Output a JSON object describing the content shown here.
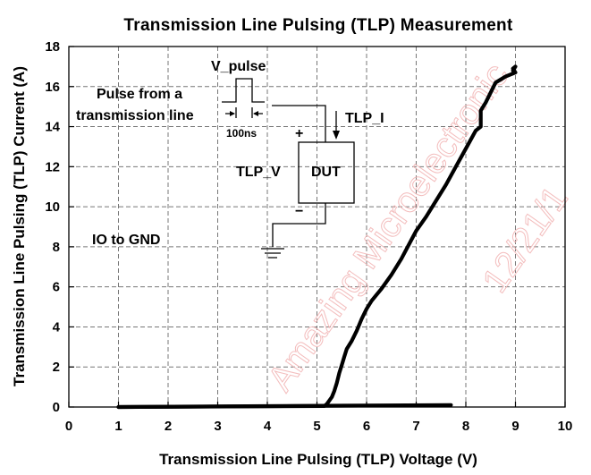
{
  "chart_data": {
    "type": "line",
    "title": "Transmission Line Pulsing (TLP) Measurement",
    "xlabel": "Transmission Line Pulsing (TLP) Voltage (V)",
    "ylabel": "Transmission Line Pulsing (TLP) Current (A)",
    "xlim": [
      0,
      10
    ],
    "ylim": [
      0,
      18
    ],
    "x_ticks": [
      "0",
      "1",
      "2",
      "3",
      "4",
      "5",
      "6",
      "7",
      "8",
      "9",
      "10"
    ],
    "y_ticks": [
      "0",
      "2",
      "4",
      "6",
      "8",
      "10",
      "12",
      "14",
      "16",
      "18"
    ],
    "grid": true,
    "series": [
      {
        "x": [
          1.0,
          5.15,
          5.2,
          5.3,
          5.35,
          5.4,
          5.45,
          5.5,
          5.55,
          5.6,
          5.7,
          5.8,
          5.9,
          6.0,
          6.1,
          6.2,
          6.3,
          6.5,
          6.7,
          6.85,
          7.0,
          7.2,
          7.4,
          7.6,
          7.8,
          8.0,
          8.2,
          8.3,
          8.3,
          8.4,
          8.6,
          8.8,
          9.0,
          8.95,
          9.0,
          8.95
        ],
        "y": [
          0.0,
          0.05,
          0.15,
          0.5,
          0.8,
          1.2,
          1.7,
          2.1,
          2.5,
          2.9,
          3.3,
          3.8,
          4.4,
          4.9,
          5.3,
          5.6,
          5.9,
          6.6,
          7.4,
          8.1,
          8.8,
          9.5,
          10.3,
          11.1,
          12.0,
          12.9,
          13.8,
          14.0,
          14.8,
          15.2,
          16.2,
          16.5,
          16.7,
          16.9,
          17.0,
          16.8
        ]
      },
      {
        "x": [
          1.0,
          7.7
        ],
        "y": [
          0.0,
          0.1
        ]
      }
    ],
    "annotations": {
      "v_pulse": "V_pulse",
      "pulse_source": [
        "Pulse from a",
        "transmission line"
      ],
      "pulse_width": "100ns",
      "plus": "+",
      "minus": "−",
      "tlp_i": "TLP_I",
      "tlp_v": "TLP_V",
      "dut": "DUT",
      "io_gnd": "IO to GND"
    },
    "watermark": [
      "Amazing Microelectronic",
      "12/21/1"
    ]
  }
}
